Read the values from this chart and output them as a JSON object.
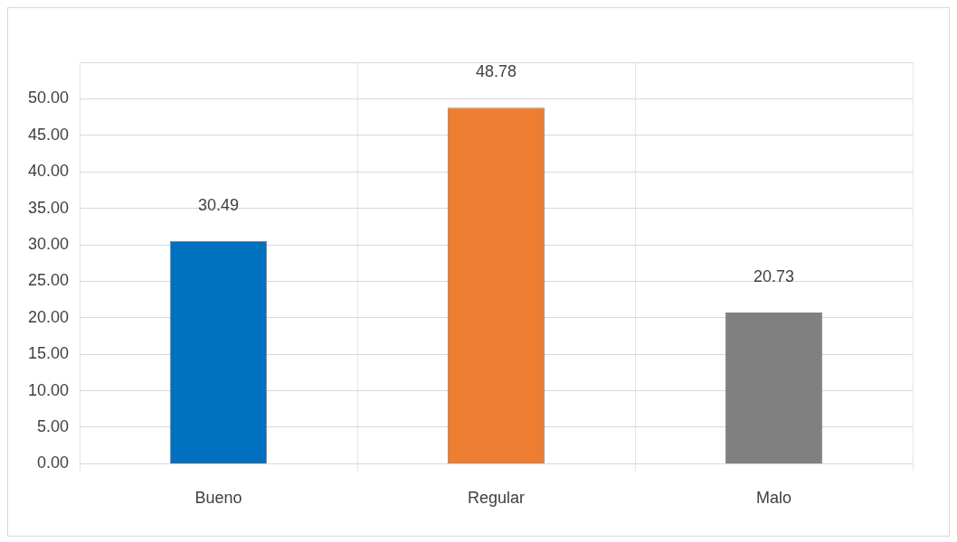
{
  "chart_data": {
    "type": "bar",
    "categories": [
      "Bueno",
      "Regular",
      "Malo"
    ],
    "values": [
      30.49,
      48.78,
      20.73
    ],
    "colors": [
      "#0070c0",
      "#ed7d31",
      "#808080"
    ],
    "data_labels": true,
    "ylim": [
      0,
      55
    ],
    "yticks": [
      {
        "value": 0,
        "label": "0.00"
      },
      {
        "value": 5,
        "label": "5.00"
      },
      {
        "value": 10,
        "label": "10.00"
      },
      {
        "value": 15,
        "label": "15.00"
      },
      {
        "value": 20,
        "label": "20.00"
      },
      {
        "value": 25,
        "label": "25.00"
      },
      {
        "value": 30,
        "label": "30.00"
      },
      {
        "value": 35,
        "label": "35.00"
      },
      {
        "value": 40,
        "label": "40.00"
      },
      {
        "value": 45,
        "label": "45.00"
      },
      {
        "value": 50,
        "label": "50.00"
      },
      {
        "value": 55,
        "label": null
      }
    ],
    "grid": true
  }
}
